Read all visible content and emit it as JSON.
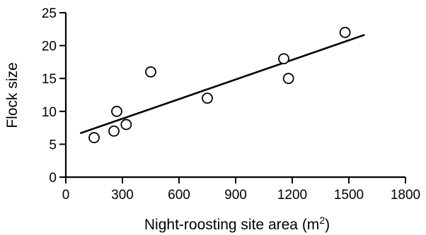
{
  "chart_data": {
    "type": "scatter",
    "xlabel": "Night-roosting site area (m",
    "xlabel_superscript": "2",
    "xlabel_suffix": ")",
    "ylabel": "Flock size",
    "xlim": [
      0,
      1800
    ],
    "ylim": [
      0,
      25
    ],
    "xticks": [
      0,
      300,
      600,
      900,
      1200,
      1500,
      1800
    ],
    "yticks": [
      0,
      5,
      10,
      15,
      20,
      25
    ],
    "xtick_labels": [
      "0",
      "300",
      "600",
      "900",
      "1200",
      "1500",
      "1800"
    ],
    "ytick_labels": [
      "0",
      "5",
      "10",
      "15",
      "20",
      "25"
    ],
    "points": [
      {
        "x": 150,
        "y": 6
      },
      {
        "x": 255,
        "y": 7
      },
      {
        "x": 270,
        "y": 10
      },
      {
        "x": 320,
        "y": 8
      },
      {
        "x": 450,
        "y": 16
      },
      {
        "x": 750,
        "y": 12
      },
      {
        "x": 1155,
        "y": 18
      },
      {
        "x": 1180,
        "y": 15
      },
      {
        "x": 1480,
        "y": 22
      }
    ],
    "trend_line": {
      "x": [
        80,
        1580
      ],
      "y": [
        6.7,
        21.6
      ]
    },
    "grid": false,
    "marker": "open-circle",
    "color": "#000000"
  }
}
